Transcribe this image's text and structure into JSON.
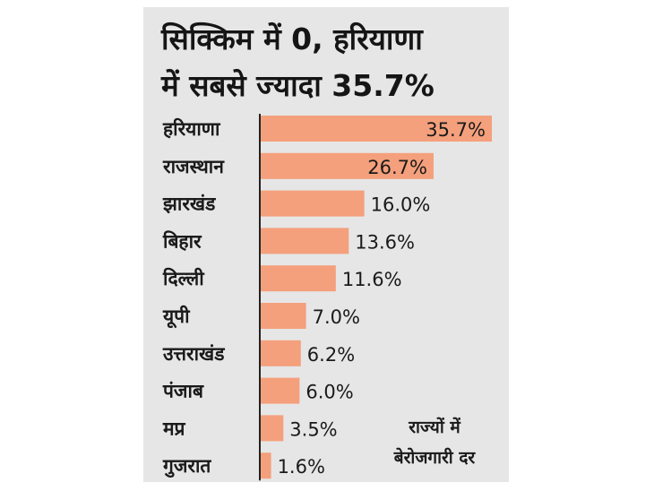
{
  "chart_data": {
    "type": "bar",
    "orientation": "horizontal",
    "title_line1": "सिक्किम में 0, हरियाणा",
    "title_line2": "में सबसे ज्यादा 35.7%",
    "categories": [
      "हरियाणा",
      "राजस्थान",
      "झारखंड",
      "बिहार",
      "दिल्ली",
      "यूपी",
      "उत्तराखंड",
      "पंजाब",
      "मप्र",
      "गुजरात"
    ],
    "values": [
      35.7,
      26.7,
      16.0,
      13.6,
      11.6,
      7.0,
      6.2,
      6.0,
      3.5,
      1.6
    ],
    "value_labels": [
      "35.7%",
      "26.7%",
      "16.0%",
      "13.6%",
      "11.6%",
      "7.0%",
      "6.2%",
      "6.0%",
      "3.5%",
      "1.6%"
    ],
    "xlim": [
      0,
      35.7
    ],
    "grid": false,
    "note_line1": "राज्यों में",
    "note_line2": "बेरोजगारी दर",
    "bar_color": "#f4a07c",
    "axis_color": "#222222",
    "background_color": "#e6e6e6"
  }
}
